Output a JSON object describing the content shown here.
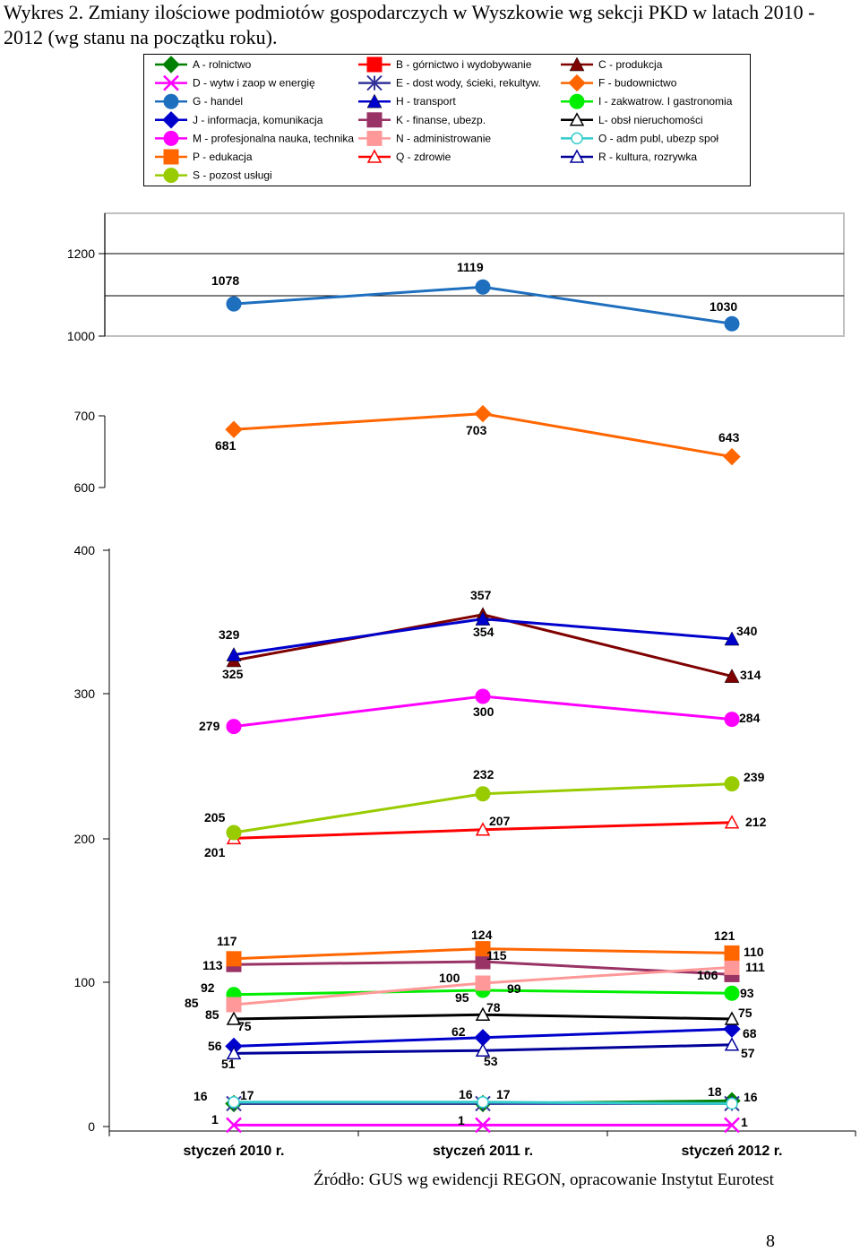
{
  "title": "Wykres 2. Zmiany ilościowe podmiotów gospodarczych w Wyszkowie  wg sekcji PKD w latach 2010 - 2012 (wg stanu na początku roku).",
  "source": "Źródło: GUS wg ewidencji REGON, opracowanie Instytut Eurotest",
  "page_number": "8",
  "chart_data": {
    "type": "line",
    "categories": [
      "styczeń 2010 r.",
      "styczeń 2011 r.",
      "styczeń 2012 r."
    ],
    "yaxis_ticks": [
      "1200",
      "1000",
      "700",
      "600",
      "400",
      "300",
      "200",
      "100",
      "0"
    ],
    "legend_position": "top",
    "grid": false,
    "series": [
      {
        "name": "A - rolnictwo",
        "values": [
          16,
          16,
          18
        ],
        "color": "#008000",
        "marker": "diamond"
      },
      {
        "name": "B - górnictwo i wydobywanie",
        "values": [
          null,
          null,
          null
        ],
        "color": "#ff0000",
        "marker": "square"
      },
      {
        "name": "C - produkcja",
        "values": [
          325,
          357,
          314
        ],
        "color": "#800000",
        "marker": "triangle"
      },
      {
        "name": "D - wytw i zaop w energię",
        "values": [
          1,
          1,
          1
        ],
        "color": "#ff00ff",
        "marker": "x"
      },
      {
        "name": "E - dost wody, ścieki, rekultyw.",
        "values": [
          16,
          16,
          16
        ],
        "color": "#333399",
        "marker": "star"
      },
      {
        "name": "F - budownictwo",
        "values": [
          681,
          703,
          643
        ],
        "color": "#ff6600",
        "marker": "diamond"
      },
      {
        "name": "G - handel",
        "values": [
          1078,
          1119,
          1030
        ],
        "color": "#1f6fbf",
        "marker": "circle"
      },
      {
        "name": "H - transport",
        "values": [
          329,
          354,
          340
        ],
        "color": "#0000cc",
        "marker": "triangle"
      },
      {
        "name": "I - zakwatrow. I gastronomia",
        "values": [
          92,
          95,
          93
        ],
        "color": "#00ee00",
        "marker": "circle"
      },
      {
        "name": "J - informacja, komunikacja",
        "values": [
          56,
          62,
          68
        ],
        "color": "#0000cc",
        "marker": "diamond"
      },
      {
        "name": "K - finanse, ubezp.",
        "values": [
          113,
          115,
          106
        ],
        "color": "#993366",
        "marker": "square"
      },
      {
        "name": "L- obsł nieruchomości",
        "values": [
          75,
          78,
          75
        ],
        "color": "#000000",
        "marker": "triangle-open"
      },
      {
        "name": "M - profesjonalna nauka, technika",
        "values": [
          279,
          300,
          284
        ],
        "color": "#ff00ff",
        "marker": "circle"
      },
      {
        "name": "N - administrowanie",
        "values": [
          85,
          100,
          111
        ],
        "color": "#ff9999",
        "marker": "square"
      },
      {
        "name": "O - adm publ, ubezp społ",
        "values": [
          17,
          17,
          16
        ],
        "color": "#33cccc",
        "marker": "circle-open"
      },
      {
        "name": "P - edukacja",
        "values": [
          117,
          124,
          121
        ],
        "color": "#ff6600",
        "marker": "square"
      },
      {
        "name": "Q - zdrowie",
        "values": [
          201,
          207,
          212
        ],
        "color": "#ff0000",
        "marker": "triangle-open"
      },
      {
        "name": "R - kultura, rozrywka",
        "values": [
          51,
          53,
          57
        ],
        "color": "#000099",
        "marker": "triangle-open"
      },
      {
        "name": "S - pozost usługi",
        "values": [
          205,
          232,
          239
        ],
        "color": "#99cc00",
        "marker": "circle"
      }
    ],
    "data_labels": [
      "1078",
      "1119",
      "1030",
      "681",
      "703",
      "643",
      "357",
      "329",
      "354",
      "340",
      "325",
      "314",
      "279",
      "300",
      "284",
      "232",
      "239",
      "205",
      "207",
      "212",
      "201",
      "117",
      "124",
      "121",
      "115",
      "110",
      "113",
      "111",
      "106",
      "100",
      "92",
      "99",
      "95",
      "93",
      "85",
      "78",
      "85",
      "75",
      "75",
      "62",
      "68",
      "56",
      "57",
      "51",
      "53",
      "16",
      "17",
      "16",
      "17",
      "18",
      "16",
      "1",
      "1",
      "1"
    ]
  }
}
